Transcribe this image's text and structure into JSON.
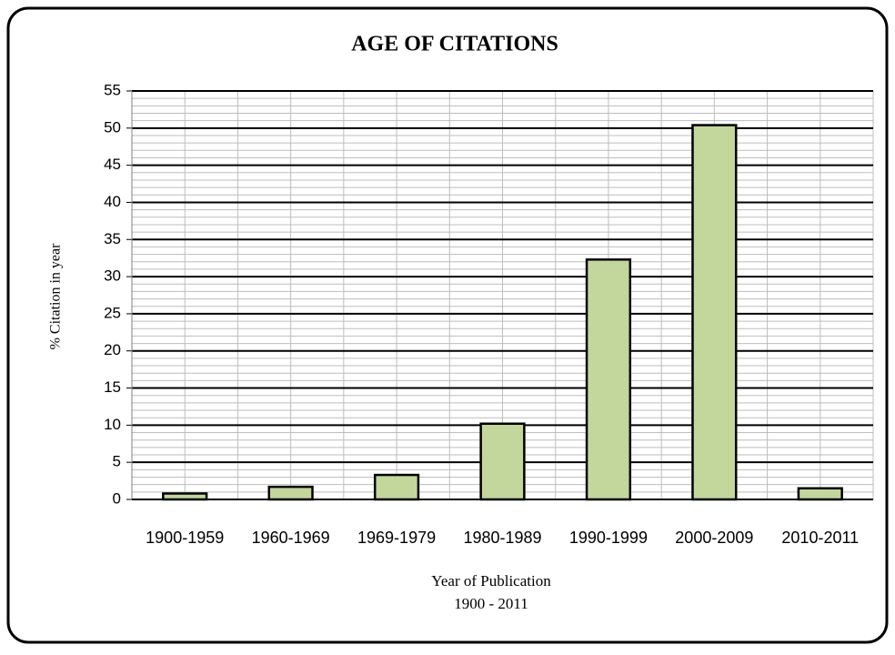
{
  "chart_data": {
    "type": "bar",
    "title": "AGE OF CITATIONS",
    "ylabel": "% Citation in year",
    "xlabel": [
      "Year of Publication",
      "1900 - 2011"
    ],
    "categories": [
      "1900-1959",
      "1960-1969",
      "1969-1979",
      "1980-1989",
      "1990-1999",
      "2000-2009",
      "2010-2011"
    ],
    "values": [
      0.8,
      1.7,
      3.3,
      10.2,
      32.3,
      50.4,
      1.5
    ],
    "color": "#c3d69b",
    "ylim": [
      0,
      55
    ],
    "yticks": [
      0,
      5,
      10,
      15,
      20,
      25,
      30,
      35,
      40,
      45,
      50,
      55
    ],
    "grid": true
  }
}
